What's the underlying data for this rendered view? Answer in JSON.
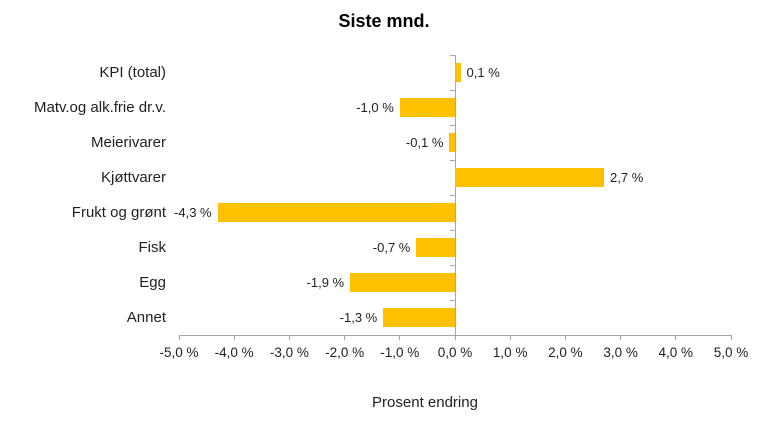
{
  "chart_data": {
    "type": "bar",
    "orientation": "horizontal",
    "title": "Siste mnd.",
    "xlabel": "Prosent endring",
    "ylabel": "",
    "categories": [
      "KPI (total)",
      "Matv.og alk.frie dr.v.",
      "Meierivarer",
      "Kjøttvarer",
      "Frukt og grønt",
      "Fisk",
      "Egg",
      "Annet"
    ],
    "values": [
      0.1,
      -1.0,
      -0.1,
      2.7,
      -4.3,
      -0.7,
      -1.9,
      -1.3
    ],
    "value_labels": [
      "0,1 %",
      "-1,0 %",
      "-0,1 %",
      "2,7 %",
      "-4,3 %",
      "-0,7 %",
      "-1,9 %",
      "-1,3 %"
    ],
    "xlim": [
      -5.0,
      5.0
    ],
    "x_ticks": [
      -5,
      -4,
      -3,
      -2,
      -1,
      0,
      1,
      2,
      3,
      4,
      5
    ],
    "x_tick_labels": [
      "-5,0 %",
      "-4,0 %",
      "-3,0 %",
      "-2,0 %",
      "-1,0 %",
      "0,0 %",
      "1,0 %",
      "2,0 %",
      "3,0 %",
      "4,0 %",
      "5,0 %"
    ],
    "grid": false,
    "legend": false,
    "bar_color": "#FFC000",
    "axis_color": "#A6A6A6",
    "text_color": "#1f1f1f"
  }
}
